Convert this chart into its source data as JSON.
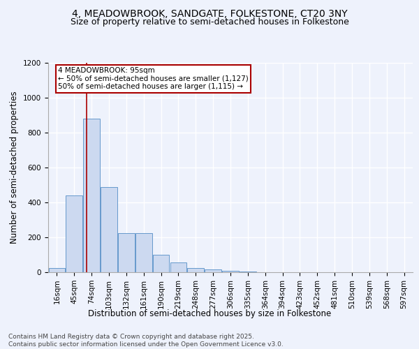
{
  "title": "4, MEADOWBROOK, SANDGATE, FOLKESTONE, CT20 3NY",
  "subtitle": "Size of property relative to semi-detached houses in Folkestone",
  "xlabel": "Distribution of semi-detached houses by size in Folkestone",
  "ylabel": "Number of semi-detached properties",
  "bar_color": "#ccd9f0",
  "bar_edge_color": "#6699cc",
  "categories": [
    "16sqm",
    "45sqm",
    "74sqm",
    "103sqm",
    "132sqm",
    "161sqm",
    "190sqm",
    "219sqm",
    "248sqm",
    "277sqm",
    "306sqm",
    "335sqm",
    "364sqm",
    "394sqm",
    "423sqm",
    "452sqm",
    "481sqm",
    "510sqm",
    "539sqm",
    "568sqm",
    "597sqm"
  ],
  "values": [
    25,
    440,
    880,
    490,
    225,
    225,
    100,
    55,
    25,
    15,
    10,
    5,
    2,
    0,
    0,
    0,
    0,
    0,
    0,
    0,
    0
  ],
  "ylim": [
    0,
    1200
  ],
  "yticks": [
    0,
    200,
    400,
    600,
    800,
    1000,
    1200
  ],
  "property_line_x": 1.72,
  "property_label": "4 MEADOWBROOK: 95sqm",
  "annotation_smaller": "← 50% of semi-detached houses are smaller (1,127)",
  "annotation_larger": "50% of semi-detached houses are larger (1,115) →",
  "footer1": "Contains HM Land Registry data © Crown copyright and database right 2025.",
  "footer2": "Contains public sector information licensed under the Open Government Licence v3.0.",
  "bg_color": "#eef2fc",
  "plot_bg_color": "#eef2fc",
  "grid_color": "#ffffff",
  "title_fontsize": 10,
  "subtitle_fontsize": 9,
  "axis_label_fontsize": 8.5,
  "tick_fontsize": 7.5,
  "footer_fontsize": 6.5,
  "red_line_color": "#aa0000",
  "annotation_fontsize": 7.5
}
